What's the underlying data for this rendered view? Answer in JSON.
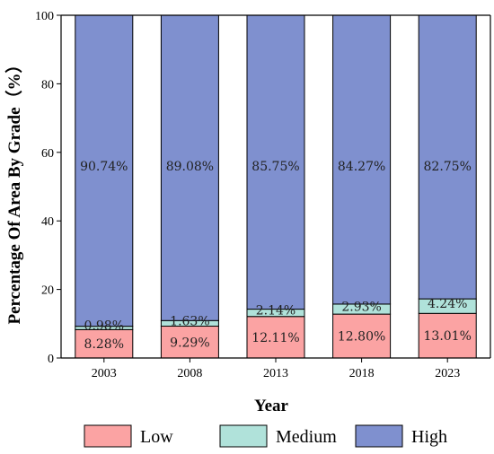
{
  "chart_data": {
    "type": "bar",
    "stacked": true,
    "categories": [
      "2003",
      "2008",
      "2013",
      "2018",
      "2023"
    ],
    "series": [
      {
        "name": "Low",
        "color": "#FBA3A3",
        "values": [
          8.28,
          9.29,
          12.11,
          12.8,
          13.01
        ],
        "labels": [
          "8.28%",
          "9.29%",
          "12.11%",
          "12.80%",
          "13.01%"
        ]
      },
      {
        "name": "Medium",
        "color": "#B0E2DA",
        "values": [
          0.98,
          1.63,
          2.14,
          2.93,
          4.24
        ],
        "labels": [
          "0.98%",
          "1.63%",
          "2.14%",
          "2.93%",
          "4.24%"
        ]
      },
      {
        "name": "High",
        "color": "#7F90CF",
        "values": [
          90.74,
          89.08,
          85.75,
          84.27,
          82.75
        ],
        "labels": [
          "90.74%",
          "89.08%",
          "85.75%",
          "84.27%",
          "82.75%"
        ]
      }
    ],
    "xlabel": "Year",
    "ylabel": "Percentage Of Area By Grade（%）",
    "ylim": [
      0,
      100
    ],
    "yticks": [
      0,
      20,
      40,
      60,
      80,
      100
    ],
    "grid": false,
    "legend": "bottom"
  }
}
